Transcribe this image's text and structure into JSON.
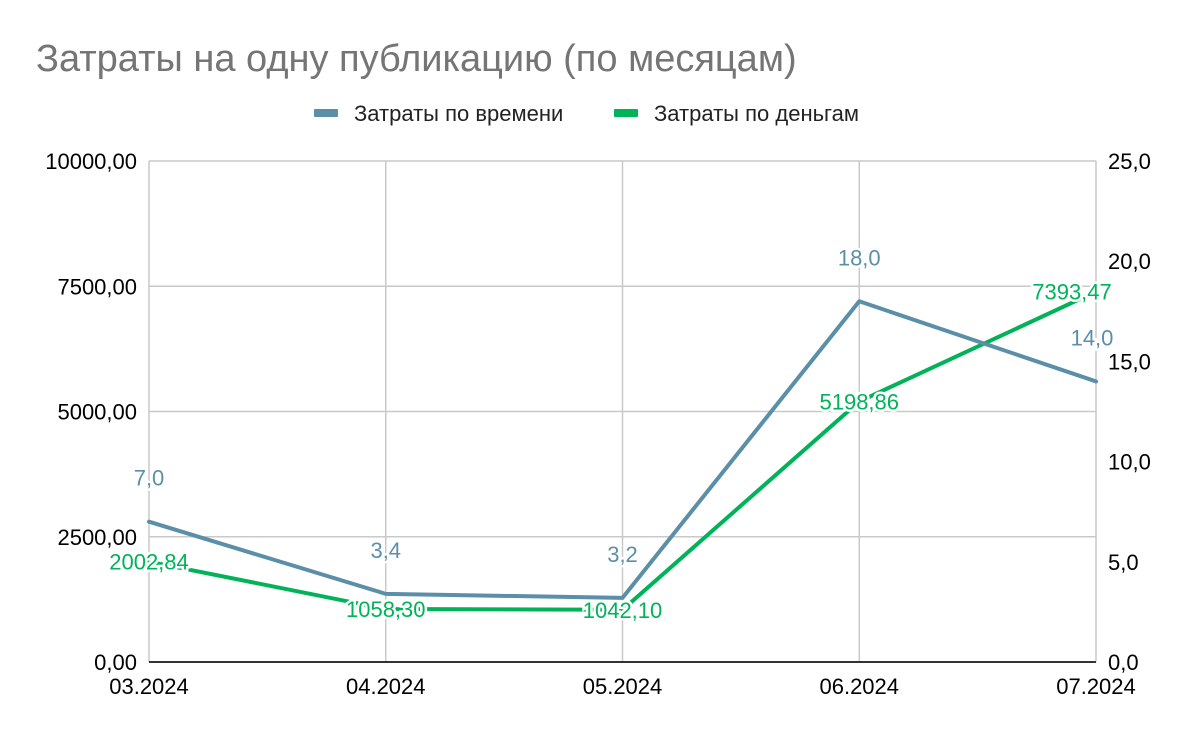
{
  "chart_data": {
    "type": "line",
    "title": "Затраты на одну публикацию (по месяцам)",
    "categories": [
      "03.2024",
      "04.2024",
      "05.2024",
      "06.2024",
      "07.2024"
    ],
    "legend_position": "top",
    "grid": true,
    "left_axis": {
      "ylim": [
        0,
        10000
      ],
      "ticks": [
        "0,00",
        "2500,00",
        "5000,00",
        "7500,00",
        "10000,00"
      ],
      "tick_values": [
        0,
        2500,
        5000,
        7500,
        10000
      ]
    },
    "right_axis": {
      "ylim": [
        0,
        25
      ],
      "ticks": [
        "0,0",
        "5,0",
        "10,0",
        "15,0",
        "20,0",
        "25,0"
      ],
      "tick_values": [
        0,
        5,
        10,
        15,
        20,
        25
      ]
    },
    "series": [
      {
        "name": "Затраты по времени",
        "axis": "right",
        "color": "#5b8fa8",
        "values": [
          7.0,
          3.4,
          3.2,
          18.0,
          14.0
        ],
        "labels": [
          "7,0",
          "3,4",
          "3,2",
          "18,0",
          "14,0"
        ]
      },
      {
        "name": "Затраты по деньгам",
        "axis": "left",
        "color": "#00b359",
        "values": [
          2002.84,
          1058.3,
          1042.1,
          5198.86,
          7393.47
        ],
        "labels": [
          "2002,84",
          "1058,30",
          "1042,10",
          "5198,86",
          "7393,47"
        ]
      }
    ]
  }
}
